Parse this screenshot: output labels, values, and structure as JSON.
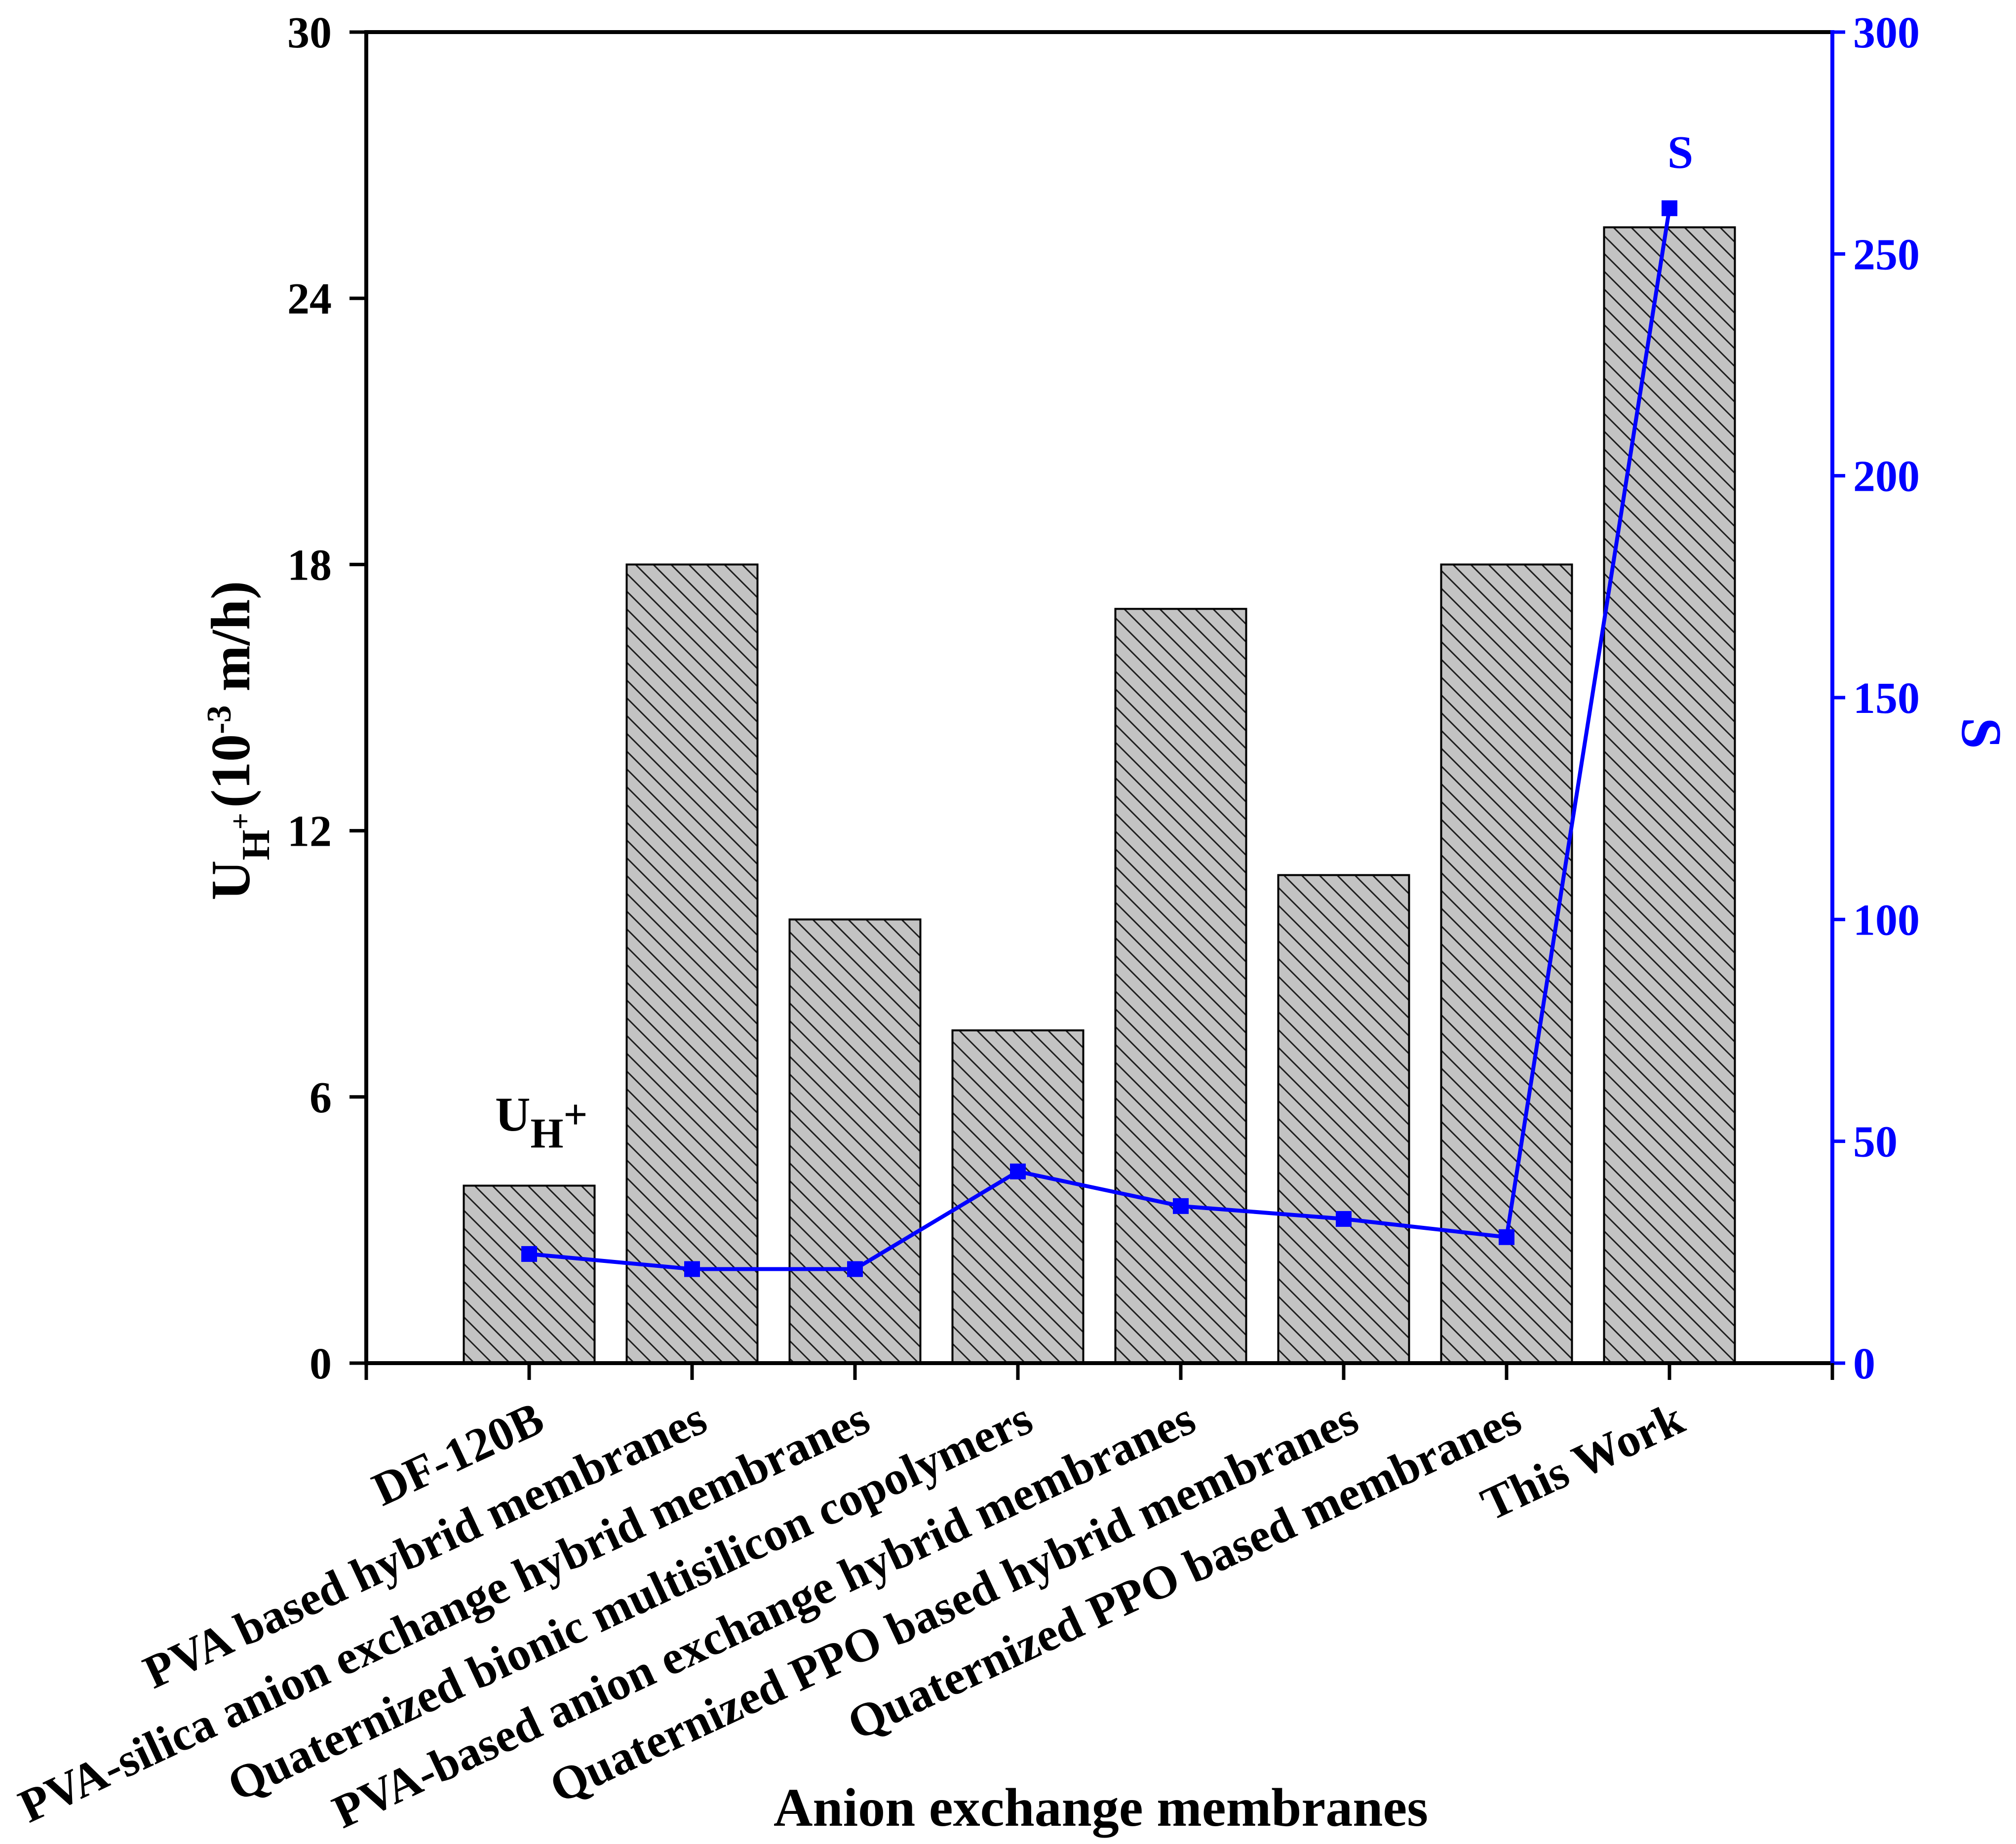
{
  "chart_data": {
    "type": "bar",
    "categories": [
      "DF-120B",
      "PVA based hybrid membranes",
      "PVA-silica anion exchange hybrid membranes",
      "Quaternized bionic multisilicon copolymers",
      "PVA-based anion exchange hybrid membranes",
      "Quaternized PPO based hybrid membranes",
      "Quaternized PPO based membranes",
      "This Work"
    ],
    "xlim": [
      0,
      9
    ],
    "ylim": [
      0,
      30
    ],
    "y2lim": [
      0,
      300
    ],
    "yticks": [
      0,
      6,
      12,
      18,
      24,
      30
    ],
    "y2ticks": [
      0,
      50,
      100,
      150,
      200,
      250,
      300
    ],
    "xlabel": "Anion exchange membranes",
    "ylabel": {
      "main": "U",
      "sub": "H",
      "sup": "+",
      "text1": "(10",
      "exp": "-3",
      "text2": " m/h)"
    },
    "y2label": "S",
    "grid": false,
    "series": [
      {
        "label": {
          "main": "U",
          "sub": "H",
          "sup": "+"
        },
        "values": [
          4.0,
          18.0,
          10.0,
          7.5,
          17.0,
          11.0,
          18.0,
          25.6
        ]
      },
      {
        "label": "S",
        "values": [
          24.6,
          21.2,
          21.2,
          43.2,
          35.4,
          32.5,
          28.4,
          260.3
        ]
      }
    ]
  },
  "colors": {
    "bar_fill": "#c3c3c3",
    "bar_hatch": "#1e1e1e",
    "bar_edge": "#000000",
    "s_series": "#0000ff",
    "left_axis": "#000000",
    "right_axis": "#0000ff"
  }
}
